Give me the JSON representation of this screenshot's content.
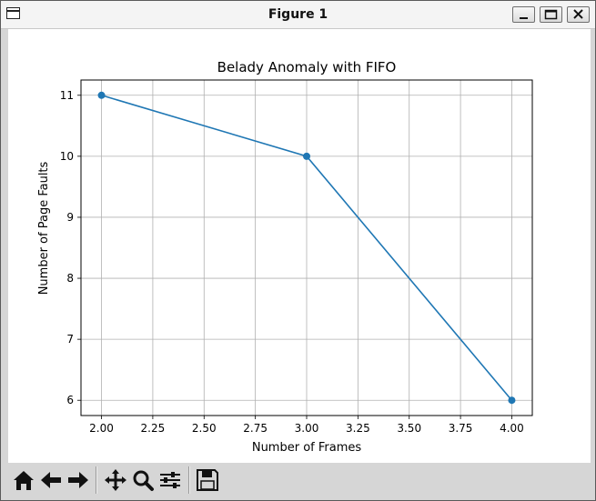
{
  "window": {
    "title": "Figure 1"
  },
  "toolbar": {
    "buttons": [
      "home-icon",
      "back-arrow-icon",
      "forward-arrow-icon",
      "pan-icon",
      "zoom-icon",
      "configure-subplots-icon",
      "save-icon"
    ]
  },
  "chart_data": {
    "type": "line",
    "title": "Belady Anomaly with FIFO",
    "xlabel": "Number of Frames",
    "ylabel": "Number of Page Faults",
    "x": [
      2,
      3,
      4
    ],
    "series": [
      {
        "values": [
          11,
          10,
          6
        ],
        "color": "#1f77b4",
        "marker": "circle"
      }
    ],
    "xlim": [
      1.9,
      4.1
    ],
    "ylim": [
      5.75,
      11.25
    ],
    "xticks": [
      2.0,
      2.25,
      2.5,
      2.75,
      3.0,
      3.25,
      3.5,
      3.75,
      4.0
    ],
    "xtick_labels": [
      "2.00",
      "2.25",
      "2.50",
      "2.75",
      "3.00",
      "3.25",
      "3.50",
      "3.75",
      "4.00"
    ],
    "yticks": [
      6,
      7,
      8,
      9,
      10,
      11
    ],
    "ytick_labels": [
      "6",
      "7",
      "8",
      "9",
      "10",
      "11"
    ],
    "grid": true
  }
}
